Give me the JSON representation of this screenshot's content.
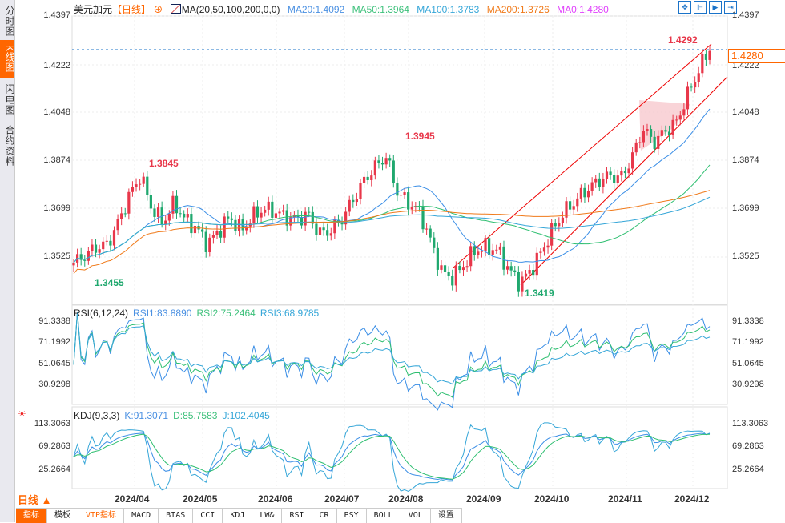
{
  "sidebar": {
    "items": [
      {
        "label": "分时图",
        "active": false
      },
      {
        "label": "K线图",
        "active": true
      },
      {
        "label": "闪电图",
        "active": false
      },
      {
        "label": "合约资料",
        "active": false
      }
    ]
  },
  "header": {
    "symbol": "美元加元",
    "period": "【日线】",
    "ma_label": "MA(20,50,100,200,0,0)",
    "ma20": "MA20:1.4092",
    "ma50": "MA50:1.3964",
    "ma100": "MA100:1.3783",
    "ma200": "MA200:1.3726",
    "ma0": "MA0:1.4280"
  },
  "colors": {
    "up": "#e8374a",
    "down": "#1fa86e",
    "ma20": "#3a8ee6",
    "ma50": "#2fbf71",
    "ma100": "#35a6d8",
    "ma200": "#f07a1a",
    "accent": "#ff6600"
  },
  "price_axis": [
    "1.4397",
    "1.4222",
    "1.4048",
    "1.3874",
    "1.3699",
    "1.3525"
  ],
  "current_price": "1.4280",
  "annotations": {
    "high1": "1.3845",
    "high2": "1.3945",
    "low1": "1.3455",
    "low2": "1.3419",
    "recent_high": "1.4292"
  },
  "rsi": {
    "label": "RSI(6,12,24)",
    "rsi1": "RSI1:83.8890",
    "rsi2": "RSI2:75.2464",
    "rsi3": "RSI3:68.9785",
    "axis": [
      "91.3338",
      "71.1992",
      "51.0645",
      "30.9298"
    ]
  },
  "kdj": {
    "label": "KDJ(9,3,3)",
    "k": "K:91.3071",
    "d": "D:85.7583",
    "j": "J:102.4045",
    "axis": [
      "113.3063",
      "69.2863",
      "25.2664"
    ]
  },
  "period_selector": "日线 ▲",
  "tabs": [
    "指标",
    "模板",
    "VIP指标",
    "MACD",
    "BIAS",
    "CCI",
    "KDJ",
    "LW&",
    "RSI",
    "CR",
    "PSY",
    "BOLL",
    "VOL",
    "设置"
  ],
  "chart_data": {
    "type": "candlestick",
    "title": "美元加元 日线",
    "xlabel": "",
    "ylabel": "",
    "ylim": [
      1.3419,
      1.4397
    ],
    "x_ticks": [
      "2024/04",
      "2024/05",
      "2024/06",
      "2024/07",
      "2024/08",
      "2024/09",
      "2024/10",
      "2024/11",
      "2024/12"
    ],
    "approx_close_path": [
      1.3505,
      1.353,
      1.356,
      1.357,
      1.365,
      1.375,
      1.382,
      1.37,
      1.365,
      1.372,
      1.366,
      1.363,
      1.357,
      1.362,
      1.367,
      1.362,
      1.367,
      1.37,
      1.369,
      1.367,
      1.366,
      1.368,
      1.361,
      1.362,
      1.366,
      1.373,
      1.38,
      1.385,
      1.389,
      1.376,
      1.372,
      1.369,
      1.358,
      1.347,
      1.345,
      1.35,
      1.355,
      1.356,
      1.355,
      1.348,
      1.343,
      1.348,
      1.355,
      1.363,
      1.369,
      1.373,
      1.377,
      1.38,
      1.382,
      1.381,
      1.388,
      1.399,
      1.394,
      1.398,
      1.401,
      1.411,
      1.42,
      1.428
    ]
  }
}
